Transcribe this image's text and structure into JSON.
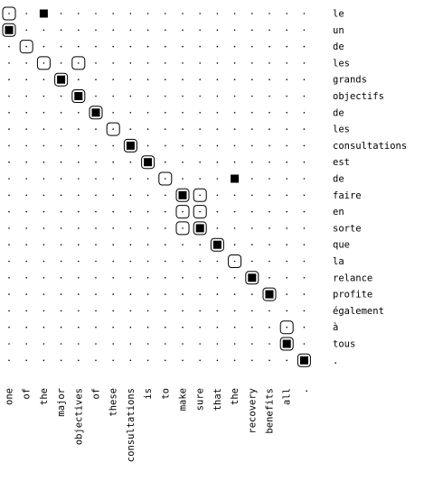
{
  "rows": [
    "le",
    "un",
    "de",
    "les",
    "grands",
    "objectifs",
    "de",
    "les",
    "consultations",
    "est",
    "de",
    "faire",
    "en",
    "sorte",
    "que",
    "la",
    "relance",
    "profite",
    "également",
    "à",
    "tous",
    "."
  ],
  "cols": [
    "one",
    "of",
    "the",
    "major",
    "objectives",
    "of",
    "these",
    "consultations",
    "is",
    "to",
    "make",
    "sure",
    "that",
    "the",
    "recovery",
    "benefits",
    "all",
    "."
  ],
  "sure_cells": [
    [
      0,
      2
    ],
    [
      1,
      0
    ],
    [
      4,
      3
    ],
    [
      5,
      4
    ],
    [
      6,
      5
    ],
    [
      8,
      7
    ],
    [
      9,
      8
    ],
    [
      10,
      13
    ],
    [
      11,
      10
    ],
    [
      13,
      11
    ],
    [
      14,
      12
    ],
    [
      16,
      14
    ],
    [
      17,
      15
    ],
    [
      20,
      16
    ],
    [
      21,
      17
    ]
  ],
  "possible_cells": [
    [
      0,
      0
    ],
    [
      1,
      0
    ],
    [
      2,
      1
    ],
    [
      3,
      2
    ],
    [
      3,
      4
    ],
    [
      4,
      3
    ],
    [
      5,
      4
    ],
    [
      6,
      5
    ],
    [
      7,
      6
    ],
    [
      8,
      7
    ],
    [
      9,
      8
    ],
    [
      10,
      9
    ],
    [
      11,
      10
    ],
    [
      11,
      11
    ],
    [
      12,
      10
    ],
    [
      12,
      11
    ],
    [
      13,
      10
    ],
    [
      13,
      11
    ],
    [
      14,
      12
    ],
    [
      15,
      13
    ],
    [
      16,
      14
    ],
    [
      17,
      15
    ],
    [
      19,
      16
    ],
    [
      20,
      16
    ],
    [
      21,
      17
    ]
  ],
  "colors": {
    "ink": "#000000",
    "background": "#ffffff"
  }
}
